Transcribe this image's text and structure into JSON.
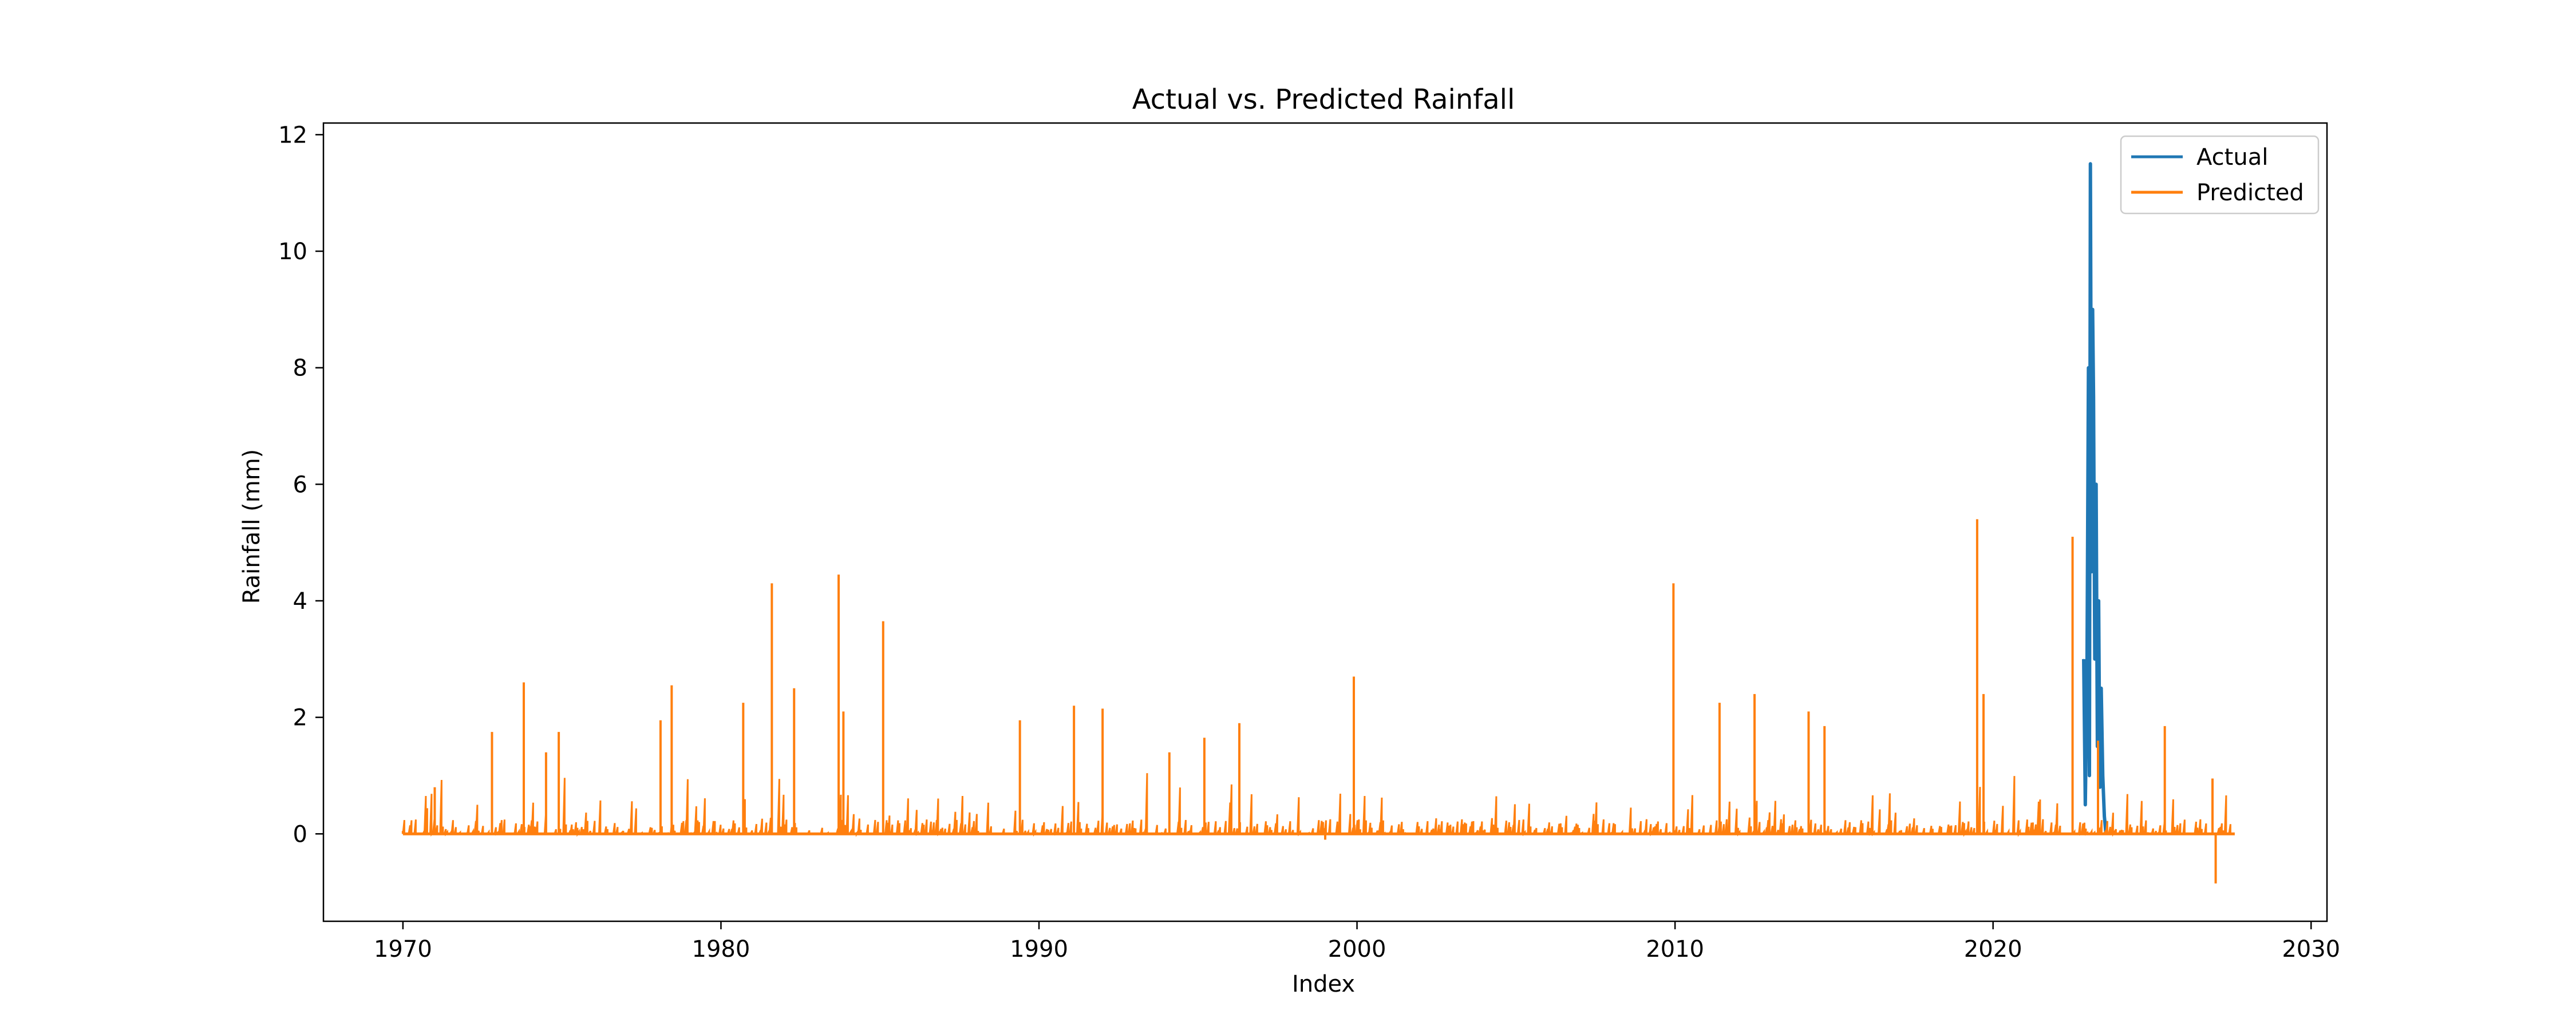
{
  "chart_data": {
    "type": "line",
    "title": "Actual vs. Predicted Rainfall",
    "xlabel": "Index",
    "ylabel": "Rainfall (mm)",
    "xlim": [
      1967.5,
      2030.5
    ],
    "ylim": [
      -1.5,
      12.2
    ],
    "x_ticks": [
      1970,
      1980,
      1990,
      2000,
      2010,
      2020,
      2030
    ],
    "y_ticks": [
      0,
      2,
      4,
      6,
      8,
      10,
      12
    ],
    "grid": false,
    "legend": {
      "position": "top-right"
    },
    "series": [
      {
        "name": "Actual",
        "color": "#1f77b4",
        "x": [
          2022.85,
          2022.9,
          2022.95,
          2023.0,
          2023.03,
          2023.06,
          2023.1,
          2023.13,
          2023.16,
          2023.2,
          2023.24,
          2023.28,
          2023.32,
          2023.36,
          2023.4,
          2023.45,
          2023.5,
          2023.55
        ],
        "y": [
          3.0,
          0.5,
          2.5,
          8.0,
          1.0,
          11.5,
          4.5,
          9.0,
          7.5,
          3.0,
          6.0,
          1.5,
          4.0,
          0.8,
          2.5,
          1.0,
          0.3,
          0.0
        ]
      },
      {
        "name": "Predicted",
        "color": "#ff7f0e",
        "x": [
          1970.0,
          1971.0,
          1972.8,
          1973.8,
          1974.5,
          1974.9,
          1978.1,
          1978.45,
          1980.7,
          1981.6,
          1982.3,
          1983.7,
          1983.85,
          1985.1,
          1989.4,
          1991.1,
          1992.0,
          1994.1,
          1995.2,
          1996.3,
          1999.0,
          1999.9,
          2009.95,
          2011.4,
          2012.5,
          2014.2,
          2014.7,
          2019.5,
          2019.7,
          2022.5,
          2023.3,
          2025.4,
          2026.9,
          2027.0,
          2027.6
        ],
        "y": [
          0.05,
          0.8,
          1.75,
          2.6,
          1.4,
          1.75,
          1.95,
          2.55,
          2.25,
          4.3,
          2.5,
          4.45,
          2.1,
          3.65,
          1.95,
          2.2,
          2.15,
          1.4,
          1.65,
          1.9,
          -0.1,
          2.7,
          4.3,
          2.25,
          2.4,
          2.1,
          1.85,
          5.4,
          2.4,
          5.1,
          1.6,
          1.85,
          0.95,
          -0.85,
          0.0
        ]
      }
    ]
  }
}
